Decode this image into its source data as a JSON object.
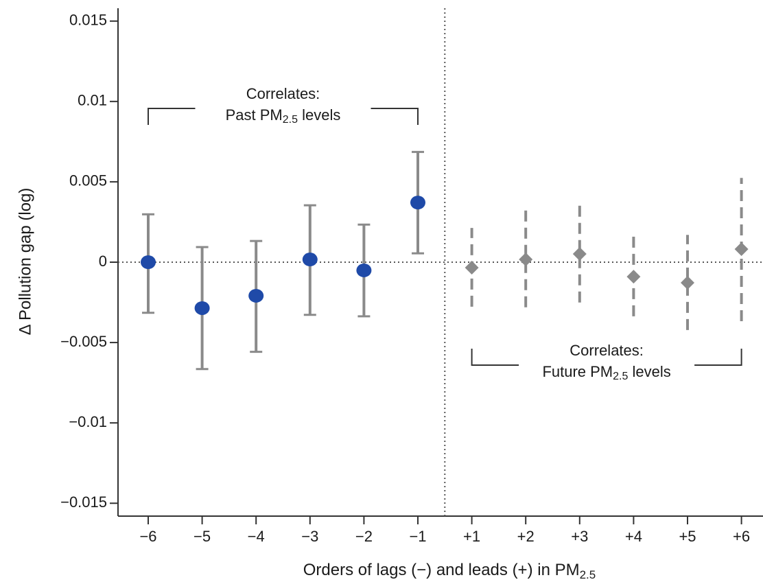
{
  "chart_data": {
    "type": "errorbar",
    "xlabel": [
      "Orders of lags (−) and leads (+) in PM",
      "2.5"
    ],
    "ylabel": "Δ Pollution gap (log)",
    "categories": [
      "−6",
      "−5",
      "−4",
      "−3",
      "−2",
      "−1",
      "+1",
      "+2",
      "+3",
      "+4",
      "+5",
      "+6"
    ],
    "series": [
      {
        "marker": "circle",
        "color": "#1f4aa8",
        "bar_color": "#8a8a8a",
        "dashed": false,
        "values": [
          0,
          -0.00286,
          -0.00209,
          0.00017,
          -0.00051,
          0.00371,
          null,
          null,
          null,
          null,
          null,
          null
        ],
        "low": [
          -0.00315,
          -0.00665,
          -0.00558,
          -0.00328,
          -0.00337,
          0.00055,
          null,
          null,
          null,
          null,
          null,
          null
        ],
        "high": [
          0.00298,
          0.00094,
          0.00132,
          0.00354,
          0.00234,
          0.00686,
          null,
          null,
          null,
          null,
          null,
          null
        ]
      },
      {
        "marker": "diamond",
        "color": "#8a8a8a",
        "bar_color": "#8a8a8a",
        "dashed": true,
        "values": [
          null,
          null,
          null,
          null,
          null,
          null,
          -0.00034,
          0.00017,
          0.00051,
          -0.0009,
          -0.00128,
          0.00081
        ],
        "low": [
          null,
          null,
          null,
          null,
          null,
          null,
          -0.00277,
          -0.00281,
          -0.00251,
          -0.00337,
          -0.00422,
          -0.00367
        ],
        "high": [
          null,
          null,
          null,
          null,
          null,
          null,
          0.00213,
          0.00324,
          0.00354,
          0.0017,
          0.0017,
          0.00524
        ]
      }
    ],
    "ylim": [
      -0.0158,
      0.0158
    ],
    "yticks": [
      {
        "value": -0.015,
        "label": "−0.015"
      },
      {
        "value": -0.01,
        "label": "−0.01"
      },
      {
        "value": -0.005,
        "label": "−0.005"
      },
      0,
      0.005,
      0.01,
      0.015
    ],
    "annotations": [
      {
        "line1": "Correlates:",
        "line2": [
          "Past PM",
          "2.5",
          " levels"
        ]
      },
      {
        "line1": "Correlates:",
        "line2": [
          "Future PM",
          "2.5",
          " levels"
        ]
      }
    ]
  }
}
